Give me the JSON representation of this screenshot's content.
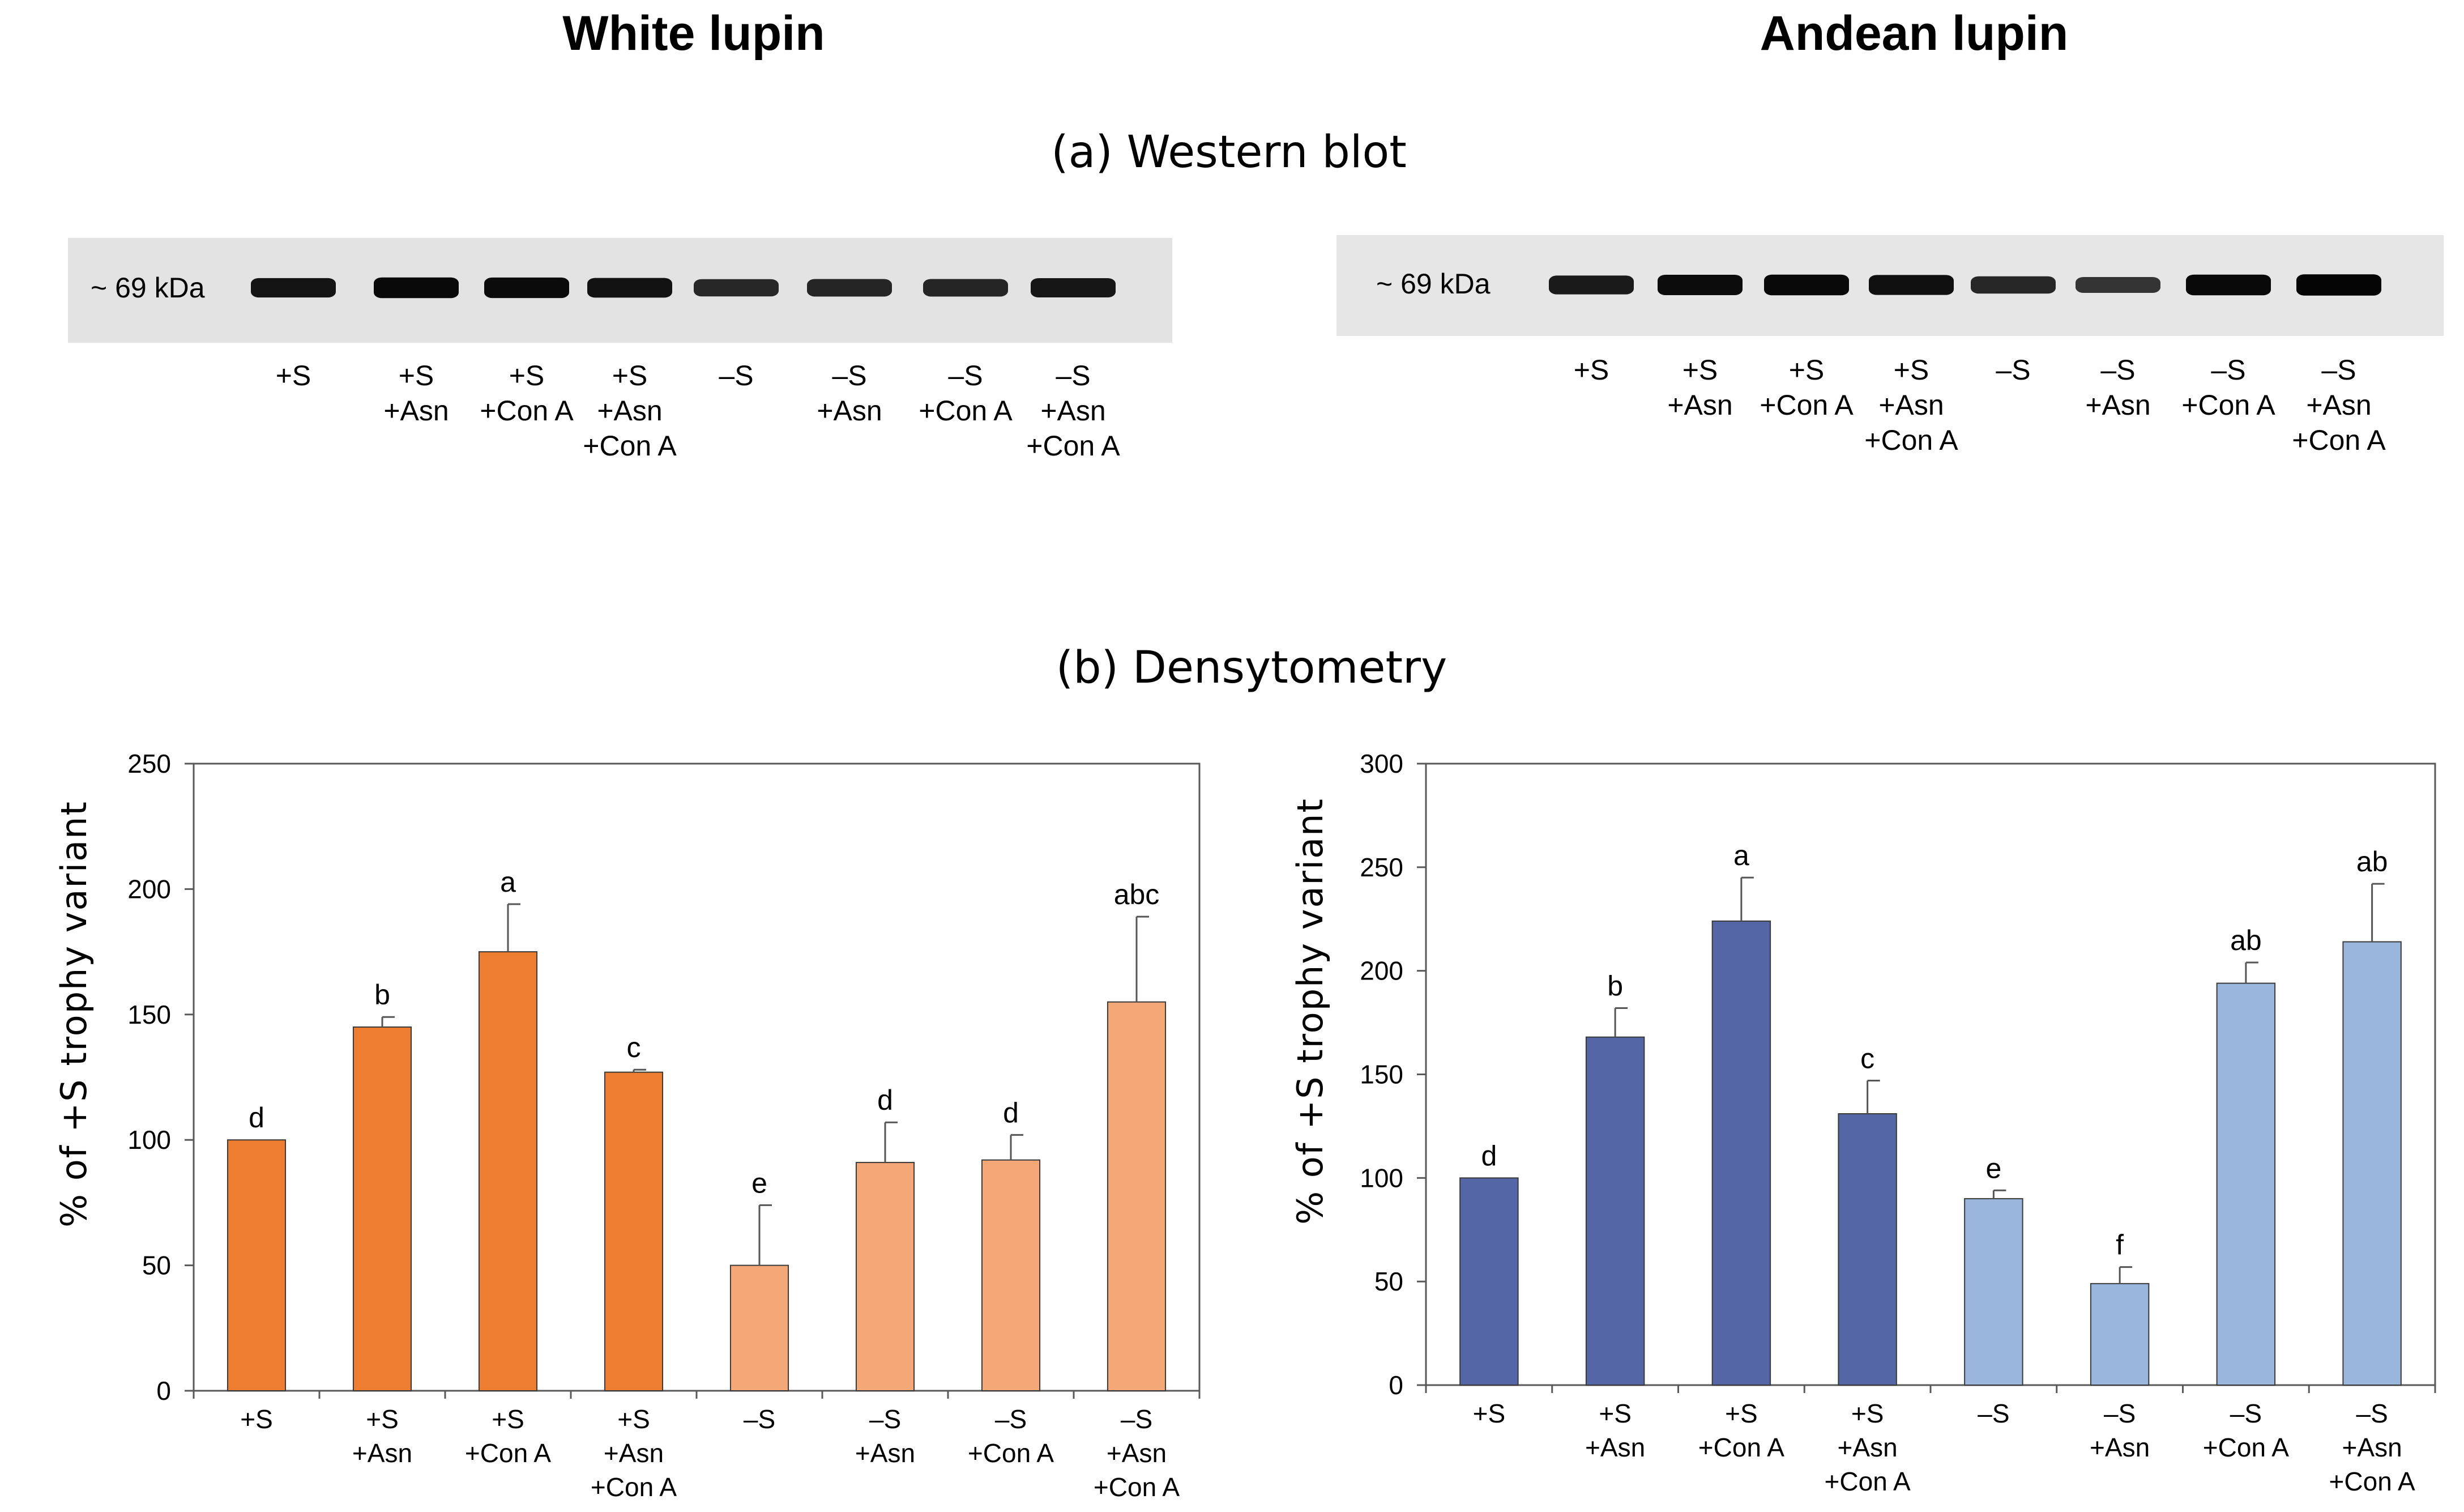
{
  "panels": {
    "white": {
      "title": "White lupin"
    },
    "andean": {
      "title": "Andean lupin"
    }
  },
  "sections": {
    "western": "(a)  Western blot",
    "densitometry": "(b)  Densytometry"
  },
  "blots": [
    {
      "marker": "~ 69 kDa",
      "lanes": [
        [
          "+S"
        ],
        [
          "+S",
          "+Asn"
        ],
        [
          "+S",
          "+Con A"
        ],
        [
          "+S",
          "+Asn",
          "+Con A"
        ],
        [
          "–S"
        ],
        [
          "–S",
          "+Asn"
        ],
        [
          "–S",
          "+Con A"
        ],
        [
          "–S",
          "+Asn",
          "+Con A"
        ]
      ],
      "band_intensity": [
        0.82,
        0.95,
        0.93,
        0.85,
        0.6,
        0.62,
        0.62,
        0.8
      ]
    },
    {
      "marker": "~ 69 kDa",
      "lanes": [
        [
          "+S"
        ],
        [
          "+S",
          "+Asn"
        ],
        [
          "+S",
          "+Con A"
        ],
        [
          "+S",
          "+Asn",
          "+Con A"
        ],
        [
          "–S"
        ],
        [
          "–S",
          "+Asn"
        ],
        [
          "–S",
          "+Con A"
        ],
        [
          "–S",
          "+Asn",
          "+Con A"
        ]
      ],
      "band_intensity": [
        0.75,
        0.92,
        0.95,
        0.88,
        0.6,
        0.45,
        0.95,
        1.0
      ]
    }
  ],
  "chart_data": [
    {
      "type": "bar",
      "title": "White lupin",
      "xlabel": "",
      "ylabel": "% of +S trophy variant",
      "ylim": [
        0,
        250
      ],
      "yticks": [
        0,
        50,
        100,
        150,
        200,
        250
      ],
      "categories": [
        [
          "+S"
        ],
        [
          "+S",
          "+Asn"
        ],
        [
          "+S",
          "+Con A"
        ],
        [
          "+S",
          "+Asn",
          "+Con A"
        ],
        [
          "–S"
        ],
        [
          "–S",
          "+Asn"
        ],
        [
          "–S",
          "+Con A"
        ],
        [
          "–S",
          "+Asn",
          "+Con A"
        ]
      ],
      "values": [
        100,
        145,
        175,
        127,
        50,
        91,
        92,
        155
      ],
      "errors": [
        0,
        4,
        19,
        1,
        24,
        16,
        10,
        34
      ],
      "letters": [
        "d",
        "b",
        "a",
        "c",
        "e",
        "d",
        "d",
        "abc"
      ],
      "colors": [
        "#ED7D31",
        "#ED7D31",
        "#ED7D31",
        "#ED7D31",
        "#F4A878",
        "#F4A878",
        "#F4A878",
        "#F4A878"
      ]
    },
    {
      "type": "bar",
      "title": "Andean lupin",
      "xlabel": "",
      "ylabel": "% of +S trophy variant",
      "ylim": [
        0,
        300
      ],
      "yticks": [
        0,
        50,
        100,
        150,
        200,
        250,
        300
      ],
      "categories": [
        [
          "+S"
        ],
        [
          "+S",
          "+Asn"
        ],
        [
          "+S",
          "+Con A"
        ],
        [
          "+S",
          "+Asn",
          "+Con A"
        ],
        [
          "–S"
        ],
        [
          "–S",
          "+Asn"
        ],
        [
          "–S",
          "+Con A"
        ],
        [
          "–S",
          "+Asn",
          "+Con A"
        ]
      ],
      "values": [
        100,
        168,
        224,
        131,
        90,
        49,
        194,
        214
      ],
      "errors": [
        0,
        14,
        21,
        16,
        4,
        8,
        10,
        28
      ],
      "letters": [
        "d",
        "b",
        "a",
        "c",
        "e",
        "f",
        "ab",
        "ab"
      ],
      "colors": [
        "#5566A6",
        "#5566A6",
        "#5566A6",
        "#5566A6",
        "#9AB6DC",
        "#9AB6DC",
        "#9AB6DC",
        "#9AB6DC"
      ]
    }
  ]
}
